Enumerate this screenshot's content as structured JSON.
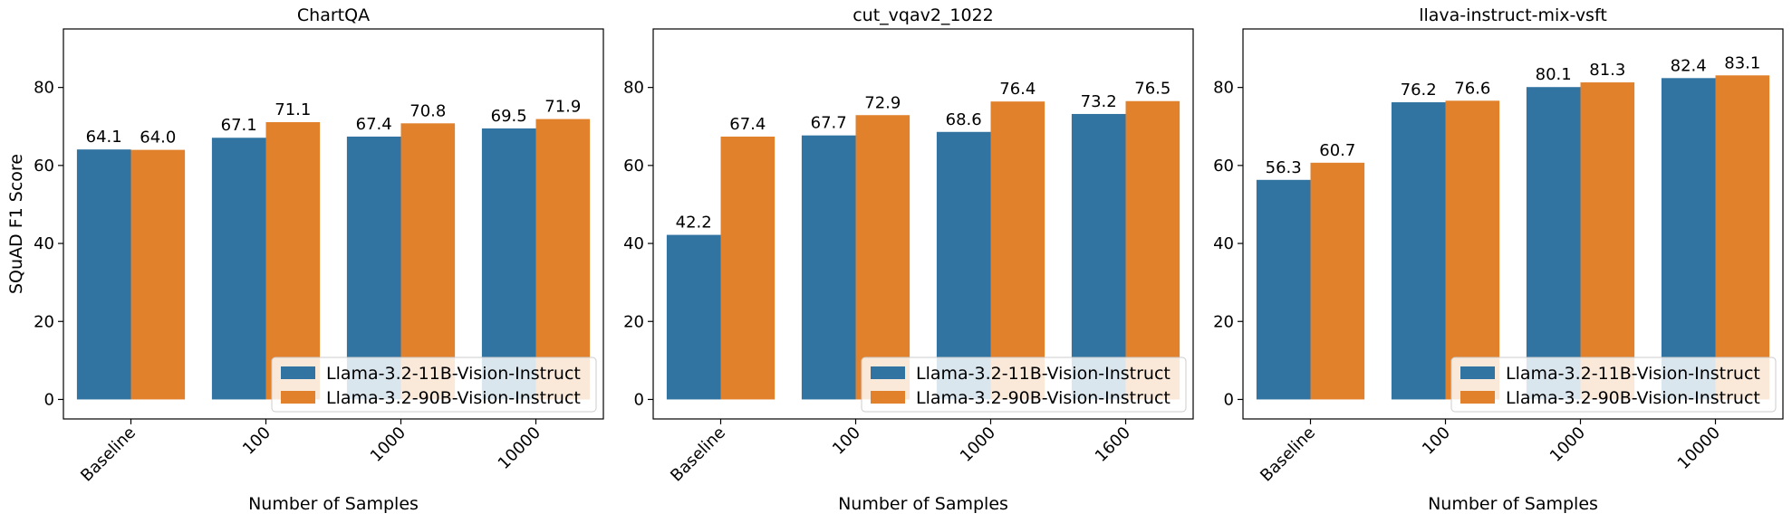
{
  "chart_data": [
    {
      "type": "bar",
      "title": "ChartQA",
      "xlabel": "Number of Samples",
      "ylabel": "SQuAD F1 Score",
      "ylim": [
        -5,
        95
      ],
      "yticks": [
        0,
        20,
        40,
        60,
        80
      ],
      "categories": [
        "Baseline",
        "100",
        "1000",
        "10000"
      ],
      "series": [
        {
          "name": "Llama-3.2-11B-Vision-Instruct",
          "color": "#3274a1",
          "values": [
            64.1,
            67.1,
            67.4,
            69.5
          ],
          "labels": [
            "64.1",
            "67.1",
            "67.4",
            "69.5"
          ]
        },
        {
          "name": "Llama-3.2-90B-Vision-Instruct",
          "color": "#e1812c",
          "values": [
            64.0,
            71.1,
            70.8,
            71.9
          ],
          "labels": [
            "64.0",
            "71.1",
            "70.8",
            "71.9"
          ]
        }
      ],
      "legend": "lower-right"
    },
    {
      "type": "bar",
      "title": "cut_vqav2_1022",
      "xlabel": "Number of Samples",
      "ylabel": "",
      "ylim": [
        -5,
        95
      ],
      "yticks": [
        0,
        20,
        40,
        60,
        80
      ],
      "categories": [
        "Baseline",
        "100",
        "1000",
        "1600"
      ],
      "series": [
        {
          "name": "Llama-3.2-11B-Vision-Instruct",
          "color": "#3274a1",
          "values": [
            42.2,
            67.7,
            68.6,
            73.2
          ],
          "labels": [
            "42.2",
            "67.7",
            "68.6",
            "73.2"
          ]
        },
        {
          "name": "Llama-3.2-90B-Vision-Instruct",
          "color": "#e1812c",
          "values": [
            67.4,
            72.9,
            76.4,
            76.5
          ],
          "labels": [
            "67.4",
            "72.9",
            "76.4",
            "76.5"
          ]
        }
      ],
      "legend": "lower-right"
    },
    {
      "type": "bar",
      "title": "llava-instruct-mix-vsft",
      "xlabel": "Number of Samples",
      "ylabel": "",
      "ylim": [
        -5,
        95
      ],
      "yticks": [
        0,
        20,
        40,
        60,
        80
      ],
      "categories": [
        "Baseline",
        "100",
        "1000",
        "10000"
      ],
      "series": [
        {
          "name": "Llama-3.2-11B-Vision-Instruct",
          "color": "#3274a1",
          "values": [
            56.3,
            76.2,
            80.1,
            82.4
          ],
          "labels": [
            "56.3",
            "76.2",
            "80.1",
            "82.4"
          ]
        },
        {
          "name": "Llama-3.2-90B-Vision-Instruct",
          "color": "#e1812c",
          "values": [
            60.7,
            76.6,
            81.3,
            83.1
          ],
          "labels": [
            "60.7",
            "76.6",
            "81.3",
            "83.1"
          ]
        }
      ],
      "legend": "lower-right"
    }
  ]
}
